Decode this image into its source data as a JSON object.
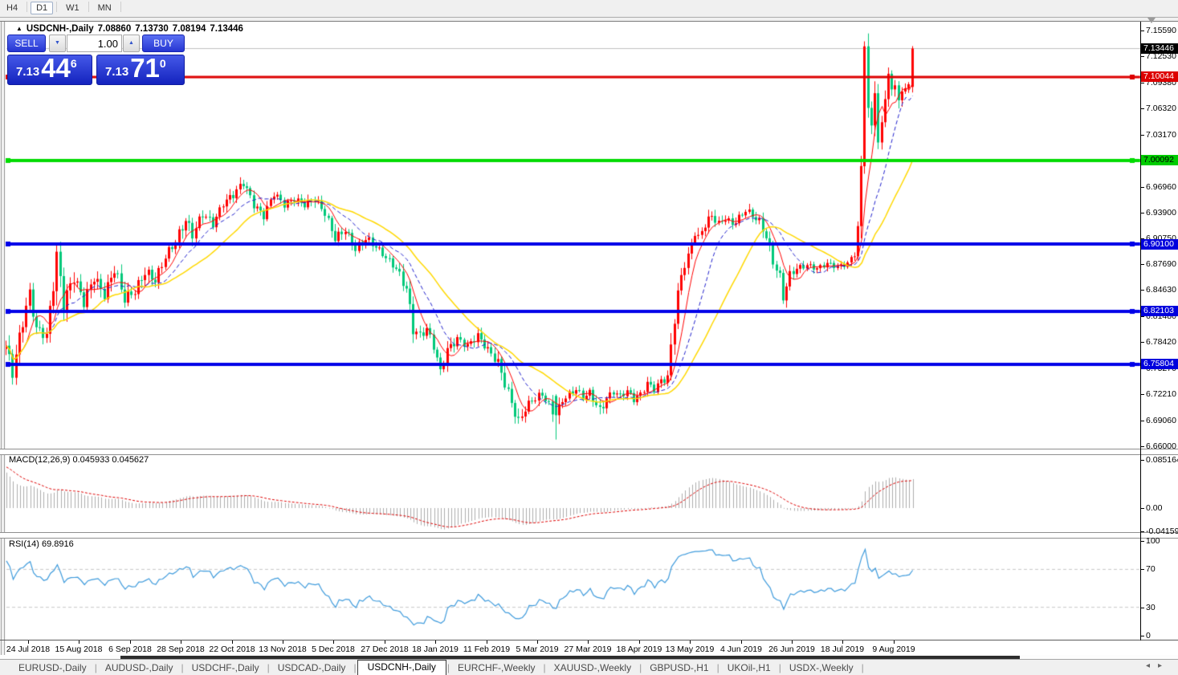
{
  "icons": {
    "collapse_arrow": "▲",
    "spinner_down": "▼",
    "spinner_up": "▲",
    "tab_scroll_left": "◂",
    "tab_scroll_right": "▸"
  },
  "app": {
    "timeframe_toolbar": {
      "buttons": [
        {
          "label": "H4",
          "active": false
        },
        {
          "label": "D1",
          "active": true
        },
        {
          "label": "W1",
          "active": false
        },
        {
          "label": "MN",
          "active": false
        }
      ]
    },
    "tab_bar": {
      "tabs": [
        {
          "label": "EURUSD-,Daily",
          "active": false
        },
        {
          "label": "AUDUSD-,Daily",
          "active": false
        },
        {
          "label": "USDCHF-,Daily",
          "active": false
        },
        {
          "label": "USDCAD-,Daily",
          "active": false
        },
        {
          "label": "USDCNH-,Daily",
          "active": true
        },
        {
          "label": "EURCHF-,Weekly",
          "active": false
        },
        {
          "label": "XAUUSD-,Weekly",
          "active": false
        },
        {
          "label": "GBPUSD-,H1",
          "active": false
        },
        {
          "label": "UKOil-,H1",
          "active": false
        },
        {
          "label": "USDX-,Weekly",
          "active": false
        }
      ]
    }
  },
  "chart": {
    "title": {
      "symbol": "USDCNH-,Daily",
      "open": "7.08860",
      "high": "7.13730",
      "low": "7.08194",
      "close": "7.13446"
    },
    "trade_panel": {
      "sell_label": "SELL",
      "buy_label": "BUY",
      "volume": "1.00",
      "sell_price": {
        "prefix": "7.13",
        "big": "44",
        "sup": "6"
      },
      "buy_price": {
        "prefix": "7.13",
        "big": "71",
        "sup": "0"
      }
    },
    "price_axis": {
      "labels": [
        "7.15590",
        "7.12530",
        "7.09380",
        "7.06320",
        "7.03170",
        "6.96960",
        "6.93900",
        "6.90750",
        "6.87690",
        "6.84630",
        "6.81480",
        "6.78420",
        "6.75270",
        "6.72210",
        "6.69060",
        "6.66000"
      ],
      "current_price_badge": {
        "value": "7.13446",
        "bg": "#000000",
        "fg": "#FFFFFF"
      }
    },
    "current_price_line": {
      "price": 7.13446,
      "color": "#C0C0C0"
    },
    "hlines": [
      {
        "label": "7.10044",
        "price": 7.10044,
        "color": "#DD0000",
        "badge_bg": "#DD0000",
        "badge_fg": "#FFFFFF",
        "thickness": 3
      },
      {
        "label": "7.00092",
        "price": 7.00092,
        "color": "#00DB00",
        "badge_bg": "#00CC00",
        "badge_fg": "#000000",
        "thickness": 4
      },
      {
        "label": "6.90100",
        "price": 6.901,
        "color": "#0000E8",
        "badge_bg": "#0000DD",
        "badge_fg": "#FFFFFF",
        "thickness": 4
      },
      {
        "label": "6.82103",
        "price": 6.82103,
        "color": "#0000E8",
        "badge_bg": "#0000DD",
        "badge_fg": "#FFFFFF",
        "thickness": 4
      },
      {
        "label": "6.75804",
        "price": 6.75804,
        "color": "#0000E8",
        "badge_bg": "#0000DD",
        "badge_fg": "#FFFFFF",
        "thickness": 4
      }
    ],
    "indicator_panels": [
      {
        "name": "MACD",
        "label": "MACD(12,26,9) 0.045933 0.045627",
        "axis_values": [
          0.085164,
          0,
          -0.041597
        ],
        "axis_labels": [
          "0.085164",
          "0.00",
          "-0.041597"
        ]
      },
      {
        "name": "RSI",
        "label": "RSI(14) 69.8916",
        "axis_values": [
          100,
          70,
          30,
          0
        ],
        "axis_labels": [
          "100",
          "70",
          "30",
          "0"
        ],
        "levels": [
          70,
          30
        ]
      }
    ],
    "date_axis": [
      "24 Jul 2018",
      "15 Aug 2018",
      "6 Sep 2018",
      "28 Sep 2018",
      "22 Oct 2018",
      "13 Nov 2018",
      "5 Dec 2018",
      "27 Dec 2018",
      "18 Jan 2019",
      "11 Feb 2019",
      "5 Mar 2019",
      "27 Mar 2019",
      "18 Apr 2019",
      "13 May 2019",
      "4 Jun 2019",
      "26 Jun 2019",
      "18 Jul 2019",
      "9 Aug 2019"
    ]
  },
  "chart_data": {
    "type": "candlestick",
    "symbol": "USDCNH",
    "timeframe": "Daily",
    "price_range": {
      "top": 7.1559,
      "bottom": 6.66
    },
    "last_ohlc": {
      "open": 7.0886,
      "high": 7.1373,
      "low": 7.08194,
      "close": 7.13446
    },
    "bars": 268,
    "close_anchors": [
      [
        0,
        6.78,
        0.02
      ],
      [
        2,
        6.748,
        0.02
      ],
      [
        5,
        6.81,
        0.024
      ],
      [
        7,
        6.842,
        0.02
      ],
      [
        9,
        6.8,
        0.018
      ],
      [
        12,
        6.792,
        0.015
      ],
      [
        15,
        6.886,
        0.034
      ],
      [
        17,
        6.83,
        0.028
      ],
      [
        20,
        6.862,
        0.02
      ],
      [
        23,
        6.832,
        0.018
      ],
      [
        26,
        6.862,
        0.018
      ],
      [
        29,
        6.84,
        0.015
      ],
      [
        32,
        6.872,
        0.02
      ],
      [
        35,
        6.836,
        0.018
      ],
      [
        38,
        6.845,
        0.015
      ],
      [
        41,
        6.868,
        0.018
      ],
      [
        44,
        6.858,
        0.015
      ],
      [
        47,
        6.886,
        0.015
      ],
      [
        50,
        6.905,
        0.015
      ],
      [
        53,
        6.93,
        0.018
      ],
      [
        55,
        6.912,
        0.015
      ],
      [
        58,
        6.938,
        0.015
      ],
      [
        61,
        6.925,
        0.012
      ],
      [
        64,
        6.95,
        0.012
      ],
      [
        67,
        6.96,
        0.012
      ],
      [
        70,
        6.975,
        0.014
      ],
      [
        73,
        6.948,
        0.012
      ],
      [
        76,
        6.935,
        0.012
      ],
      [
        79,
        6.962,
        0.012
      ],
      [
        82,
        6.948,
        0.01
      ],
      [
        85,
        6.955,
        0.01
      ],
      [
        88,
        6.948,
        0.01
      ],
      [
        91,
        6.955,
        0.012
      ],
      [
        94,
        6.938,
        0.012
      ],
      [
        97,
        6.908,
        0.014
      ],
      [
        100,
        6.918,
        0.012
      ],
      [
        103,
        6.895,
        0.012
      ],
      [
        106,
        6.908,
        0.014
      ],
      [
        109,
        6.898,
        0.01
      ],
      [
        112,
        6.885,
        0.01
      ],
      [
        115,
        6.872,
        0.012
      ],
      [
        118,
        6.848,
        0.018
      ],
      [
        120,
        6.8,
        0.02
      ],
      [
        122,
        6.792,
        0.014
      ],
      [
        124,
        6.8,
        0.012
      ],
      [
        126,
        6.78,
        0.014
      ],
      [
        128,
        6.748,
        0.018
      ],
      [
        130,
        6.775,
        0.014
      ],
      [
        133,
        6.788,
        0.012
      ],
      [
        136,
        6.78,
        0.01
      ],
      [
        139,
        6.792,
        0.012
      ],
      [
        142,
        6.775,
        0.012
      ],
      [
        145,
        6.76,
        0.014
      ],
      [
        147,
        6.735,
        0.016
      ],
      [
        149,
        6.712,
        0.016
      ],
      [
        151,
        6.688,
        0.018
      ],
      [
        153,
        6.705,
        0.014
      ],
      [
        155,
        6.715,
        0.012
      ],
      [
        158,
        6.722,
        0.012
      ],
      [
        160,
        6.71,
        0.01
      ],
      [
        162,
        6.692,
        0.026
      ],
      [
        164,
        6.715,
        0.012
      ],
      [
        166,
        6.722,
        0.01
      ],
      [
        168,
        6.728,
        0.01
      ],
      [
        170,
        6.718,
        0.01
      ],
      [
        172,
        6.724,
        0.01
      ],
      [
        175,
        6.702,
        0.016
      ],
      [
        177,
        6.717,
        0.012
      ],
      [
        179,
        6.725,
        0.01
      ],
      [
        181,
        6.72,
        0.01
      ],
      [
        183,
        6.726,
        0.01
      ],
      [
        185,
        6.716,
        0.01
      ],
      [
        187,
        6.722,
        0.01
      ],
      [
        189,
        6.735,
        0.012
      ],
      [
        191,
        6.728,
        0.01
      ],
      [
        193,
        6.738,
        0.012
      ],
      [
        195,
        6.742,
        0.012
      ],
      [
        196,
        6.778,
        0.028
      ],
      [
        197,
        6.815,
        0.026
      ],
      [
        198,
        6.84,
        0.024
      ],
      [
        199,
        6.862,
        0.026
      ],
      [
        200,
        6.88,
        0.022
      ],
      [
        201,
        6.885,
        0.018
      ],
      [
        202,
        6.902,
        0.018
      ],
      [
        203,
        6.916,
        0.016
      ],
      [
        204,
        6.908,
        0.014
      ],
      [
        206,
        6.925,
        0.014
      ],
      [
        208,
        6.935,
        0.012
      ],
      [
        210,
        6.925,
        0.012
      ],
      [
        212,
        6.932,
        0.01
      ],
      [
        214,
        6.925,
        0.01
      ],
      [
        216,
        6.932,
        0.012
      ],
      [
        218,
        6.942,
        0.012
      ],
      [
        220,
        6.935,
        0.01
      ],
      [
        222,
        6.928,
        0.012
      ],
      [
        224,
        6.91,
        0.014
      ],
      [
        226,
        6.88,
        0.014
      ],
      [
        228,
        6.862,
        0.014
      ],
      [
        229,
        6.838,
        0.016
      ],
      [
        231,
        6.865,
        0.012
      ],
      [
        233,
        6.872,
        0.01
      ],
      [
        236,
        6.876,
        0.008
      ],
      [
        239,
        6.872,
        0.008
      ],
      [
        242,
        6.878,
        0.008
      ],
      [
        245,
        6.874,
        0.008
      ],
      [
        248,
        6.878,
        0.008
      ],
      [
        250,
        6.89,
        0.01
      ],
      [
        251,
        6.92,
        0.014
      ],
      [
        252,
        6.99,
        0.028
      ],
      [
        253,
        7.135,
        0.045
      ],
      [
        254,
        7.056,
        0.035
      ],
      [
        255,
        7.04,
        0.022
      ],
      [
        256,
        7.09,
        0.026
      ],
      [
        257,
        7.015,
        0.03
      ],
      [
        258,
        7.045,
        0.018
      ],
      [
        259,
        7.08,
        0.018
      ],
      [
        260,
        7.1,
        0.016
      ],
      [
        261,
        7.085,
        0.014
      ],
      [
        262,
        7.095,
        0.014
      ],
      [
        263,
        7.068,
        0.016
      ],
      [
        264,
        7.083,
        0.013
      ],
      [
        265,
        7.09,
        0.011
      ],
      [
        266,
        7.089,
        0.009
      ],
      [
        267,
        7.13446,
        0.028
      ]
    ],
    "overrides": [
      [
        162,
        6.72,
        6.722,
        6.668,
        6.697
      ],
      [
        253,
        6.994,
        7.143,
        6.985,
        7.137
      ],
      [
        267,
        7.0886,
        7.1373,
        7.08194,
        7.13446
      ]
    ],
    "moving_averages": [
      {
        "period": 6,
        "color": "#FF0000",
        "dash": [],
        "width": 1
      },
      {
        "period": 13,
        "color": "#2222CC",
        "dash": [
          5,
          3
        ],
        "width": 1
      },
      {
        "period": 26,
        "color": "#FFD800",
        "dash": [],
        "width": 1.5
      }
    ],
    "macd": {
      "fast": 12,
      "slow": 26,
      "signal": 9,
      "current": "0.045933",
      "current_signal": "0.045627",
      "axis_max": 0.085164,
      "axis_min": -0.041597
    },
    "rsi": {
      "period": 14,
      "current": 69.8916,
      "levels": [
        70,
        30
      ]
    },
    "colors": {
      "bull": "#FF0000",
      "bear": "#00C87A",
      "histogram": "#ACACAC",
      "macd_signal": "#DD0000",
      "rsi_line": "#3F9BDC",
      "rsi_levels": "#C8C8C8",
      "current_price_line": "#C0C0C0"
    }
  }
}
